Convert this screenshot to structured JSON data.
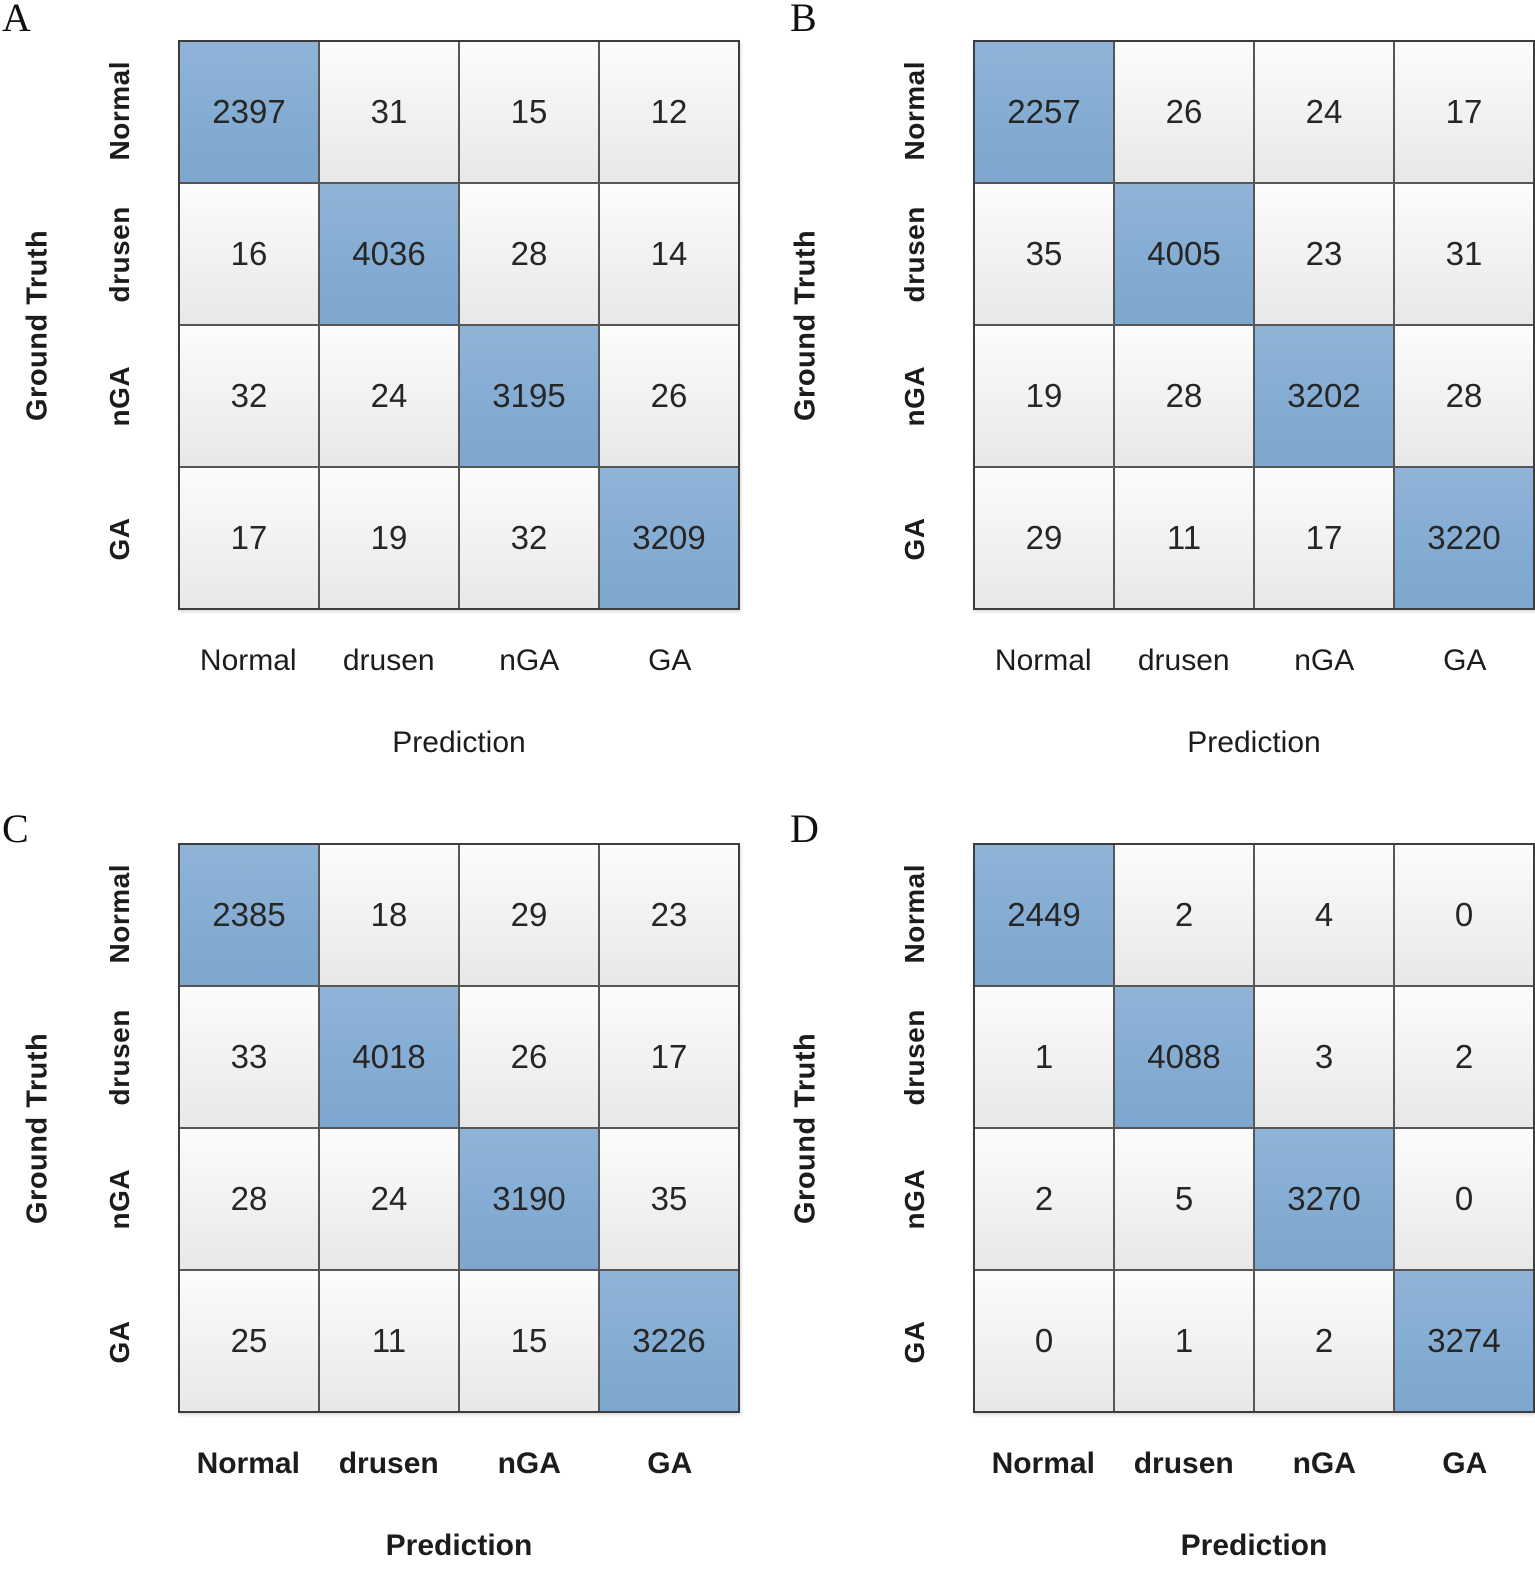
{
  "figure": {
    "description": "Four 4x4 confusion matrices comparing Ground Truth vs Prediction",
    "colors": {
      "diagonal_fill": "#84abd1",
      "offdiagonal_fill_top": "#fcfcfc",
      "offdiagonal_fill_bottom": "#e8e8e8",
      "grid_line": "#565656",
      "outer_border": "#3d3d3d",
      "text": "#262626"
    }
  },
  "chart_data": [
    {
      "type": "heatmap",
      "panel_letter": "A",
      "xlabel": "Prediction",
      "ylabel": "Ground Truth",
      "row_labels": [
        "Normal",
        "drusen",
        "nGA",
        "GA"
      ],
      "col_labels": [
        "Normal",
        "drusen",
        "nGA",
        "GA"
      ],
      "matrix": [
        [
          2397,
          31,
          15,
          12
        ],
        [
          16,
          4036,
          28,
          14
        ],
        [
          32,
          24,
          3195,
          26
        ],
        [
          17,
          19,
          32,
          3209
        ]
      ],
      "highlight": "diagonal"
    },
    {
      "type": "heatmap",
      "panel_letter": "B",
      "xlabel": "Prediction",
      "ylabel": "Ground Truth",
      "row_labels": [
        "Normal",
        "drusen",
        "nGA",
        "GA"
      ],
      "col_labels": [
        "Normal",
        "drusen",
        "nGA",
        "GA"
      ],
      "matrix": [
        [
          2257,
          26,
          24,
          17
        ],
        [
          35,
          4005,
          23,
          31
        ],
        [
          19,
          28,
          3202,
          28
        ],
        [
          29,
          11,
          17,
          3220
        ]
      ],
      "highlight": "diagonal"
    },
    {
      "type": "heatmap",
      "panel_letter": "C",
      "xlabel": "Prediction",
      "ylabel": "Ground Truth",
      "row_labels": [
        "Normal",
        "drusen",
        "nGA",
        "GA"
      ],
      "col_labels": [
        "Normal",
        "drusen",
        "nGA",
        "GA"
      ],
      "matrix": [
        [
          2385,
          18,
          29,
          23
        ],
        [
          33,
          4018,
          26,
          17
        ],
        [
          28,
          24,
          3190,
          35
        ],
        [
          25,
          11,
          15,
          3226
        ]
      ],
      "highlight": "diagonal"
    },
    {
      "type": "heatmap",
      "panel_letter": "D",
      "xlabel": "Prediction",
      "ylabel": "Ground Truth",
      "row_labels": [
        "Normal",
        "drusen",
        "nGA",
        "GA"
      ],
      "col_labels": [
        "Normal",
        "drusen",
        "nGA",
        "GA"
      ],
      "matrix": [
        [
          2449,
          2,
          4,
          0
        ],
        [
          1,
          4088,
          3,
          2
        ],
        [
          2,
          5,
          3270,
          0
        ],
        [
          0,
          1,
          2,
          3274
        ]
      ],
      "highlight": "diagonal"
    }
  ]
}
